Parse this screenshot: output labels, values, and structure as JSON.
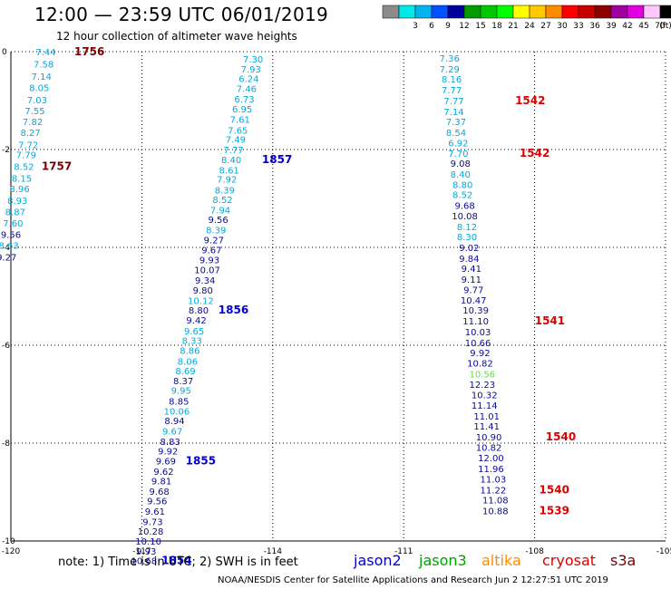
{
  "header": {
    "title": "12:00 — 23:59 UTC 06/01/2019",
    "subtitle": "12 hour collection of altimeter wave heights"
  },
  "color_scale": {
    "unit": "(ft)",
    "bins": [
      {
        "label": "",
        "color": "#8c8c8c"
      },
      {
        "label": "3",
        "color": "#00e8e8"
      },
      {
        "label": "6",
        "color": "#00b4f0"
      },
      {
        "label": "9",
        "color": "#0050ff"
      },
      {
        "label": "12",
        "color": "#00009c"
      },
      {
        "label": "15",
        "color": "#009c00"
      },
      {
        "label": "18",
        "color": "#00c800"
      },
      {
        "label": "21",
        "color": "#00ff00"
      },
      {
        "label": "24",
        "color": "#ffff00"
      },
      {
        "label": "27",
        "color": "#ffc800"
      },
      {
        "label": "30",
        "color": "#ff8c00"
      },
      {
        "label": "33",
        "color": "#ff0000"
      },
      {
        "label": "36",
        "color": "#c80000"
      },
      {
        "label": "39",
        "color": "#8c0000"
      },
      {
        "label": "42",
        "color": "#a000a0"
      },
      {
        "label": "45",
        "color": "#e000e0"
      },
      {
        "label": "70",
        "color": "#ffc8ff"
      },
      {
        "label": "",
        "color": "#000000"
      }
    ]
  },
  "map": {
    "lon_range": [
      -120,
      -105
    ],
    "lat_range": [
      -10,
      0
    ],
    "lon_ticks": [
      {
        "value": -120,
        "label": "-120"
      },
      {
        "value": -117,
        "label": "-117"
      },
      {
        "value": -114,
        "label": "-114"
      },
      {
        "value": -111,
        "label": "-111"
      },
      {
        "value": -108,
        "label": "-108"
      },
      {
        "value": -105,
        "label": "-105"
      }
    ],
    "lat_ticks": [
      {
        "value": 0,
        "label": "0"
      },
      {
        "value": -2,
        "label": "-2"
      },
      {
        "value": -4,
        "label": "-4"
      },
      {
        "value": -6,
        "label": "-6"
      },
      {
        "value": -8,
        "label": "-8"
      },
      {
        "value": -10,
        "label": "-10"
      }
    ],
    "gridlines": true
  },
  "colors": {
    "cyan": "#00aade",
    "navy": "#0a0a96",
    "green": "#64dc50",
    "red": "#dc0000",
    "darkred": "#780000",
    "blue": "#0000d2"
  },
  "tracks": [
    {
      "id": "track-a",
      "color_keys": [
        "cyan",
        "cyan",
        "cyan",
        "cyan",
        "cyan",
        "cyan",
        "cyan",
        "cyan",
        "cyan",
        "cyan",
        "cyan",
        "cyan",
        "cyan",
        "cyan",
        "cyan",
        "cyan",
        "navy",
        "cyan",
        "navy"
      ],
      "points": [
        {
          "lon": -119.2,
          "lat": 0.0,
          "value": "7.44"
        },
        {
          "lon": -119.25,
          "lat": -0.25,
          "value": "7.58"
        },
        {
          "lon": -119.3,
          "lat": -0.5,
          "value": "7.14"
        },
        {
          "lon": -119.35,
          "lat": -0.73,
          "value": "8.05"
        },
        {
          "lon": -119.4,
          "lat": -0.98,
          "value": "7.03"
        },
        {
          "lon": -119.45,
          "lat": -1.2,
          "value": "7.55"
        },
        {
          "lon": -119.5,
          "lat": -1.43,
          "value": "7.82"
        },
        {
          "lon": -119.55,
          "lat": -1.65,
          "value": "8.27"
        },
        {
          "lon": -119.6,
          "lat": -1.9,
          "value": "7.72"
        },
        {
          "lon": -119.65,
          "lat": -2.1,
          "value": "7.79"
        },
        {
          "lon": -119.7,
          "lat": -2.34,
          "value": "8.52"
        },
        {
          "lon": -119.75,
          "lat": -2.58,
          "value": "8.15"
        },
        {
          "lon": -119.8,
          "lat": -2.8,
          "value": "8.96"
        },
        {
          "lon": -119.85,
          "lat": -3.04,
          "value": "8.93"
        },
        {
          "lon": -119.9,
          "lat": -3.27,
          "value": "8.87"
        },
        {
          "lon": -119.95,
          "lat": -3.5,
          "value": "7.60"
        },
        {
          "lon": -120.0,
          "lat": -3.73,
          "value": "9.56"
        },
        {
          "lon": -120.05,
          "lat": -3.95,
          "value": "8.63"
        },
        {
          "lon": -120.1,
          "lat": -4.19,
          "value": "9.27"
        }
      ],
      "time_labels": [
        {
          "lon": -118.2,
          "lat": 0.0,
          "text": "1756",
          "color_key": "darkred"
        },
        {
          "lon": -118.95,
          "lat": -2.34,
          "text": "1757",
          "color_key": "darkred"
        }
      ]
    },
    {
      "id": "track-b",
      "color_keys": [
        "cyan",
        "cyan",
        "cyan",
        "cyan",
        "cyan",
        "cyan",
        "cyan",
        "cyan",
        "cyan",
        "cyan",
        "cyan",
        "cyan",
        "cyan",
        "cyan",
        "cyan",
        "cyan",
        "navy",
        "cyan",
        "navy",
        "navy",
        "navy",
        "navy",
        "navy",
        "navy",
        "cyan",
        "navy",
        "navy",
        "cyan",
        "cyan",
        "cyan",
        "cyan",
        "cyan",
        "navy",
        "cyan",
        "navy",
        "cyan",
        "navy",
        "cyan",
        "navy",
        "navy",
        "navy",
        "navy",
        "navy",
        "navy",
        "navy",
        "navy",
        "navy",
        "navy",
        "navy",
        "navy"
      ],
      "points": [
        {
          "lon": -114.45,
          "lat": -0.15,
          "value": "7.30"
        },
        {
          "lon": -114.5,
          "lat": -0.35,
          "value": "7.93"
        },
        {
          "lon": -114.55,
          "lat": -0.55,
          "value": "6.24"
        },
        {
          "lon": -114.6,
          "lat": -0.75,
          "value": "7.46"
        },
        {
          "lon": -114.65,
          "lat": -0.96,
          "value": "6.73"
        },
        {
          "lon": -114.7,
          "lat": -1.17,
          "value": "6.95"
        },
        {
          "lon": -114.75,
          "lat": -1.38,
          "value": "7.61"
        },
        {
          "lon": -114.8,
          "lat": -1.6,
          "value": "7.65"
        },
        {
          "lon": -114.85,
          "lat": -1.79,
          "value": "7.49"
        },
        {
          "lon": -114.9,
          "lat": -2.0,
          "value": "7.77"
        },
        {
          "lon": -114.95,
          "lat": -2.2,
          "value": "8.40"
        },
        {
          "lon": -115.0,
          "lat": -2.42,
          "value": "8.61"
        },
        {
          "lon": -115.05,
          "lat": -2.6,
          "value": "7.92"
        },
        {
          "lon": -115.1,
          "lat": -2.82,
          "value": "8.39"
        },
        {
          "lon": -115.15,
          "lat": -3.02,
          "value": "8.52"
        },
        {
          "lon": -115.2,
          "lat": -3.23,
          "value": "7.94"
        },
        {
          "lon": -115.25,
          "lat": -3.43,
          "value": "9.56"
        },
        {
          "lon": -115.3,
          "lat": -3.64,
          "value": "8.39"
        },
        {
          "lon": -115.35,
          "lat": -3.84,
          "value": "9.27"
        },
        {
          "lon": -115.4,
          "lat": -4.05,
          "value": "9.67"
        },
        {
          "lon": -115.45,
          "lat": -4.25,
          "value": "9.93"
        },
        {
          "lon": -115.5,
          "lat": -4.45,
          "value": "10.07"
        },
        {
          "lon": -115.55,
          "lat": -4.67,
          "value": "9.34"
        },
        {
          "lon": -115.6,
          "lat": -4.87,
          "value": "9.80"
        },
        {
          "lon": -115.65,
          "lat": -5.08,
          "value": "10.12"
        },
        {
          "lon": -115.7,
          "lat": -5.28,
          "value": "8.80"
        },
        {
          "lon": -115.75,
          "lat": -5.48,
          "value": "9.42"
        },
        {
          "lon": -115.8,
          "lat": -5.7,
          "value": "9.65"
        },
        {
          "lon": -115.85,
          "lat": -5.9,
          "value": "8.33"
        },
        {
          "lon": -115.9,
          "lat": -6.1,
          "value": "8.86"
        },
        {
          "lon": -115.95,
          "lat": -6.32,
          "value": "8.06"
        },
        {
          "lon": -116.0,
          "lat": -6.52,
          "value": "8.69"
        },
        {
          "lon": -116.05,
          "lat": -6.72,
          "value": "8.37"
        },
        {
          "lon": -116.1,
          "lat": -6.92,
          "value": "9.95"
        },
        {
          "lon": -116.15,
          "lat": -7.14,
          "value": "8.85"
        },
        {
          "lon": -116.2,
          "lat": -7.34,
          "value": "10.06"
        },
        {
          "lon": -116.25,
          "lat": -7.54,
          "value": "8.94"
        },
        {
          "lon": -116.3,
          "lat": -7.75,
          "value": "9.67"
        },
        {
          "lon": -116.35,
          "lat": -7.96,
          "value": "8.83"
        },
        {
          "lon": -116.4,
          "lat": -8.16,
          "value": "9.92"
        },
        {
          "lon": -116.45,
          "lat": -8.36,
          "value": "9.69"
        },
        {
          "lon": -116.5,
          "lat": -8.57,
          "value": "9.62"
        },
        {
          "lon": -116.55,
          "lat": -8.77,
          "value": "9.81"
        },
        {
          "lon": -116.6,
          "lat": -8.98,
          "value": "9.68"
        },
        {
          "lon": -116.65,
          "lat": -9.18,
          "value": "9.56"
        },
        {
          "lon": -116.7,
          "lat": -9.39,
          "value": "9.61"
        },
        {
          "lon": -116.75,
          "lat": -9.6,
          "value": "9.73"
        },
        {
          "lon": -116.8,
          "lat": -9.8,
          "value": "10.28"
        },
        {
          "lon": -116.85,
          "lat": -10.0,
          "value": "10.10"
        },
        {
          "lon": -116.9,
          "lat": -10.2,
          "value": "9.93"
        }
      ],
      "extra_points": [
        {
          "lon": -116.95,
          "lat": -10.4,
          "value": "10.68",
          "color_key": "navy"
        }
      ],
      "time_labels": [
        {
          "lon": -113.9,
          "lat": -2.2,
          "text": "1857",
          "color_key": "blue"
        },
        {
          "lon": -114.9,
          "lat": -5.28,
          "text": "1856",
          "color_key": "blue"
        },
        {
          "lon": -115.65,
          "lat": -8.36,
          "text": "1855",
          "color_key": "blue"
        },
        {
          "lon": -116.2,
          "lat": -10.4,
          "text": "1854",
          "color_key": "blue"
        }
      ]
    },
    {
      "id": "track-c",
      "color_keys": [
        "cyan",
        "cyan",
        "cyan",
        "cyan",
        "cyan",
        "cyan",
        "cyan",
        "cyan",
        "cyan",
        "cyan",
        "navy",
        "cyan",
        "cyan",
        "cyan",
        "navy",
        "navy",
        "cyan",
        "cyan",
        "navy",
        "navy",
        "navy",
        "navy",
        "navy",
        "navy",
        "navy",
        "navy",
        "navy",
        "navy",
        "navy",
        "navy",
        "green",
        "navy",
        "navy",
        "navy",
        "navy",
        "navy",
        "navy",
        "navy",
        "navy",
        "navy",
        "navy",
        "navy",
        "navy"
      ],
      "points": [
        {
          "lon": -109.95,
          "lat": -0.13,
          "value": "7.36"
        },
        {
          "lon": -109.95,
          "lat": -0.35,
          "value": "7.29"
        },
        {
          "lon": -109.9,
          "lat": -0.56,
          "value": "8.16"
        },
        {
          "lon": -109.9,
          "lat": -0.78,
          "value": "7.77"
        },
        {
          "lon": -109.85,
          "lat": -1.0,
          "value": "7.77"
        },
        {
          "lon": -109.85,
          "lat": -1.22,
          "value": "7.14"
        },
        {
          "lon": -109.8,
          "lat": -1.43,
          "value": "7.37"
        },
        {
          "lon": -109.8,
          "lat": -1.65,
          "value": "8.54"
        },
        {
          "lon": -109.75,
          "lat": -1.86,
          "value": "6.92"
        },
        {
          "lon": -109.75,
          "lat": -2.07,
          "value": "7.70"
        },
        {
          "lon": -109.7,
          "lat": -2.28,
          "value": "9.08"
        },
        {
          "lon": -109.7,
          "lat": -2.5,
          "value": "8.40"
        },
        {
          "lon": -109.65,
          "lat": -2.71,
          "value": "8.80"
        },
        {
          "lon": -109.65,
          "lat": -2.92,
          "value": "8.52"
        },
        {
          "lon": -109.6,
          "lat": -3.14,
          "value": "9.68"
        },
        {
          "lon": -109.6,
          "lat": -3.35,
          "value": "10.08"
        },
        {
          "lon": -109.55,
          "lat": -3.57,
          "value": "8.12"
        },
        {
          "lon": -109.55,
          "lat": -3.78,
          "value": "8.30"
        },
        {
          "lon": -109.5,
          "lat": -4.0,
          "value": "9.02"
        },
        {
          "lon": -109.5,
          "lat": -4.22,
          "value": "9.84"
        },
        {
          "lon": -109.45,
          "lat": -4.43,
          "value": "9.41"
        },
        {
          "lon": -109.45,
          "lat": -4.65,
          "value": "9.11"
        },
        {
          "lon": -109.4,
          "lat": -4.86,
          "value": "9.77"
        },
        {
          "lon": -109.4,
          "lat": -5.07,
          "value": "10.47"
        },
        {
          "lon": -109.35,
          "lat": -5.28,
          "value": "10.39"
        },
        {
          "lon": -109.35,
          "lat": -5.5,
          "value": "11.10"
        },
        {
          "lon": -109.3,
          "lat": -5.72,
          "value": "10.03"
        },
        {
          "lon": -109.3,
          "lat": -5.94,
          "value": "10.66"
        },
        {
          "lon": -109.25,
          "lat": -6.15,
          "value": "9.92"
        },
        {
          "lon": -109.25,
          "lat": -6.36,
          "value": "10.82"
        },
        {
          "lon": -109.2,
          "lat": -6.58,
          "value": "10.56"
        },
        {
          "lon": -109.2,
          "lat": -6.8,
          "value": "12.23"
        },
        {
          "lon": -109.15,
          "lat": -7.01,
          "value": "10.32"
        },
        {
          "lon": -109.15,
          "lat": -7.22,
          "value": "11.14"
        },
        {
          "lon": -109.1,
          "lat": -7.44,
          "value": "11.01"
        },
        {
          "lon": -109.1,
          "lat": -7.65,
          "value": "11.41"
        },
        {
          "lon": -109.05,
          "lat": -7.87,
          "value": "10.90"
        },
        {
          "lon": -109.05,
          "lat": -8.08,
          "value": "10.82"
        },
        {
          "lon": -109.0,
          "lat": -8.3,
          "value": "12.00"
        },
        {
          "lon": -109.0,
          "lat": -8.52,
          "value": "11.96"
        },
        {
          "lon": -108.95,
          "lat": -8.73,
          "value": "11.03"
        },
        {
          "lon": -108.95,
          "lat": -8.95,
          "value": "11.22"
        },
        {
          "lon": -108.9,
          "lat": -9.16,
          "value": "11.08"
        }
      ],
      "extra_points": [
        {
          "lon": -108.9,
          "lat": -9.38,
          "value": "10.88",
          "color_key": "navy"
        }
      ],
      "time_labels": [
        {
          "lon": -108.1,
          "lat": -1.0,
          "text": "1542",
          "color_key": "red"
        },
        {
          "lon": -108.0,
          "lat": -2.07,
          "text": "1542",
          "color_key": "red"
        },
        {
          "lon": -107.65,
          "lat": -5.5,
          "text": "1541",
          "color_key": "red"
        },
        {
          "lon": -107.4,
          "lat": -7.87,
          "text": "1540",
          "color_key": "red"
        },
        {
          "lon": -107.55,
          "lat": -8.95,
          "text": "1540",
          "color_key": "red"
        },
        {
          "lon": -107.55,
          "lat": -9.38,
          "text": "1539",
          "color_key": "red"
        }
      ]
    }
  ],
  "footer": {
    "note": "note:  1) Time is in UTC;  2) SWH is in feet",
    "satellites": [
      {
        "name": "jason2",
        "color": "#0000d2"
      },
      {
        "name": "jason3",
        "color": "#00a000"
      },
      {
        "name": "altika",
        "color": "#ff8c00"
      },
      {
        "name": "cryosat",
        "color": "#dc0000"
      },
      {
        "name": "s3a",
        "color": "#780000"
      }
    ],
    "credit": "NOAA/NESDIS Center for Satellite Applications and Research     Jun  2 12:27:51 UTC 2019"
  }
}
